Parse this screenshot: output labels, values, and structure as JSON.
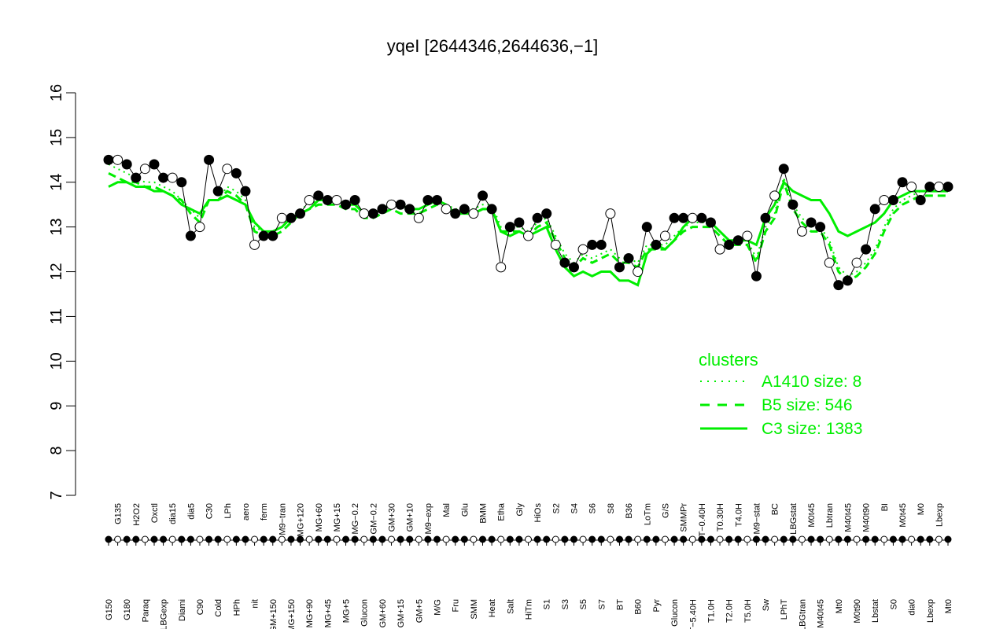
{
  "chart_data": {
    "type": "line",
    "title": "yqeI [2644346,2644636,−1]",
    "xlabel": "",
    "ylabel": "",
    "ylim": [
      7,
      16
    ],
    "yticks": [
      "7",
      "8",
      "9",
      "10",
      "11",
      "12",
      "13",
      "14",
      "15",
      "16"
    ],
    "xlim": [
      0,
      67
    ],
    "categories": [
      {
        "x": 1,
        "label": "G150"
      },
      {
        "x": 2,
        "label": "G135"
      },
      {
        "x": 3,
        "label": "G180"
      },
      {
        "x": 4,
        "label": "H2O2"
      },
      {
        "x": 5,
        "label": "Paraq"
      },
      {
        "x": 6,
        "label": "Oxctl"
      },
      {
        "x": 7,
        "label": "LBGexp"
      },
      {
        "x": 8,
        "label": "dia15"
      },
      {
        "x": 9,
        "label": "Diami"
      },
      {
        "x": 10,
        "label": "dia5"
      },
      {
        "x": 11,
        "label": "C90"
      },
      {
        "x": 12,
        "label": "C30"
      },
      {
        "x": 13,
        "label": "Cold"
      },
      {
        "x": 14,
        "label": "LPh"
      },
      {
        "x": 15,
        "label": "HPh"
      },
      {
        "x": 16,
        "label": "aero"
      },
      {
        "x": 17,
        "label": "nit"
      },
      {
        "x": 18,
        "label": "ferm"
      },
      {
        "x": 19,
        "label": "GM+150"
      },
      {
        "x": 20,
        "label": "M9−tran"
      },
      {
        "x": 21,
        "label": "MG+150"
      },
      {
        "x": 22,
        "label": "MG+120"
      },
      {
        "x": 23,
        "label": "MG+90"
      },
      {
        "x": 24,
        "label": "MG+60"
      },
      {
        "x": 25,
        "label": "MG+45"
      },
      {
        "x": 26,
        "label": "MG+15"
      },
      {
        "x": 27,
        "label": "MG+5"
      },
      {
        "x": 28,
        "label": "MG−0.2"
      },
      {
        "x": 29,
        "label": "Glucon"
      },
      {
        "x": 30,
        "label": "GM−0.2"
      },
      {
        "x": 31,
        "label": "GM+60"
      },
      {
        "x": 32,
        "label": "GM+30"
      },
      {
        "x": 33,
        "label": "GM+15"
      },
      {
        "x": 34,
        "label": "GM+10"
      },
      {
        "x": 35,
        "label": "GM+5"
      },
      {
        "x": 36,
        "label": "M9−exp"
      },
      {
        "x": 37,
        "label": "M/G"
      },
      {
        "x": 38,
        "label": "Mal"
      },
      {
        "x": 39,
        "label": "Fru"
      },
      {
        "x": 40,
        "label": "Glu"
      },
      {
        "x": 41,
        "label": "SMM"
      },
      {
        "x": 42,
        "label": "BMM"
      },
      {
        "x": 43,
        "label": "Heat"
      },
      {
        "x": 44,
        "label": "Etha"
      },
      {
        "x": 45,
        "label": "Salt"
      },
      {
        "x": 46,
        "label": "Gly"
      },
      {
        "x": 47,
        "label": "HiTm"
      },
      {
        "x": 48,
        "label": "HiOs"
      },
      {
        "x": 49,
        "label": "S1"
      },
      {
        "x": 50,
        "label": "S2"
      },
      {
        "x": 51,
        "label": "S3"
      },
      {
        "x": 52,
        "label": "S4"
      },
      {
        "x": 53,
        "label": "S5"
      },
      {
        "x": 54,
        "label": "S6"
      },
      {
        "x": 55,
        "label": "S7"
      },
      {
        "x": 56,
        "label": "S8"
      },
      {
        "x": 57,
        "label": "BT"
      },
      {
        "x": 58,
        "label": "B36"
      },
      {
        "x": 59,
        "label": "B60"
      },
      {
        "x": 60,
        "label": "LoTm"
      },
      {
        "x": 61,
        "label": "Pyr"
      },
      {
        "x": 62,
        "label": "G/S"
      },
      {
        "x": 63,
        "label": "Glucon"
      },
      {
        "x": 64,
        "label": "SMMPr"
      },
      {
        "x": 65,
        "label": "T−5.40H"
      },
      {
        "x": 66,
        "label": "T−0.40H"
      },
      {
        "x": 67,
        "label": "T1.0H"
      },
      {
        "x": 68,
        "label": "T0.30H"
      },
      {
        "x": 69,
        "label": "T2.0H"
      },
      {
        "x": 70,
        "label": "T4.0H"
      },
      {
        "x": 71,
        "label": "T5.0H"
      },
      {
        "x": 72,
        "label": "M9−stat"
      },
      {
        "x": 73,
        "label": "Sw"
      },
      {
        "x": 74,
        "label": "BC"
      },
      {
        "x": 75,
        "label": "LPhT"
      },
      {
        "x": 76,
        "label": "LBGstat"
      },
      {
        "x": 77,
        "label": "LBGtran"
      },
      {
        "x": 78,
        "label": "M0t45"
      },
      {
        "x": 79,
        "label": "M40t45"
      },
      {
        "x": 80,
        "label": "Lbtran"
      },
      {
        "x": 81,
        "label": "Mt0"
      },
      {
        "x": 82,
        "label": "M40t45"
      },
      {
        "x": 83,
        "label": "M0t90"
      },
      {
        "x": 84,
        "label": "M40t90"
      },
      {
        "x": 85,
        "label": "Lbstat"
      },
      {
        "x": 86,
        "label": "BI"
      },
      {
        "x": 87,
        "label": "S0"
      },
      {
        "x": 88,
        "label": "M0t45"
      },
      {
        "x": 89,
        "label": "dia0"
      },
      {
        "x": 90,
        "label": "M0"
      },
      {
        "x": 91,
        "label": "Lbexp"
      },
      {
        "x": 92,
        "label": "Lbexp"
      },
      {
        "x": 93,
        "label": "Mt0"
      }
    ],
    "series": [
      {
        "name": "A1410 size: 8",
        "style": "dotted",
        "values": [
          14.4,
          14.3,
          14.2,
          14.1,
          14.0,
          14.0,
          13.9,
          13.8,
          13.6,
          13.4,
          13.2,
          13.6,
          13.6,
          13.9,
          13.8,
          13.6,
          13.0,
          12.9,
          12.9,
          13.0,
          13.2,
          13.4,
          13.5,
          13.6,
          13.6,
          13.6,
          13.5,
          13.5,
          13.3,
          13.3,
          13.4,
          13.5,
          13.4,
          13.4,
          13.4,
          13.5,
          13.6,
          13.5,
          13.4,
          13.4,
          13.4,
          13.5,
          13.5,
          13.0,
          13.0,
          13.0,
          12.9,
          13.1,
          13.2,
          12.8,
          12.4,
          12.2,
          12.4,
          12.3,
          12.4,
          12.5,
          12.3,
          12.3,
          12.2,
          12.6,
          12.6,
          12.6,
          12.8,
          13.0,
          13.1,
          13.1,
          13.1,
          12.9,
          12.7,
          12.7,
          12.7,
          12.3,
          13.0,
          13.3,
          14.1,
          13.5,
          13.2,
          13.0,
          13.0,
          12.7,
          12.1,
          11.9,
          12.0,
          12.2,
          12.5,
          13.0,
          13.4,
          13.6,
          13.7,
          13.8,
          13.8,
          13.8,
          13.8
        ]
      },
      {
        "name": "B5 size: 546",
        "style": "dashed",
        "values": [
          14.2,
          14.1,
          14.0,
          14.0,
          13.9,
          13.9,
          13.8,
          13.7,
          13.6,
          13.3,
          13.1,
          13.6,
          13.6,
          13.8,
          13.7,
          13.5,
          12.9,
          12.8,
          12.8,
          12.9,
          13.1,
          13.3,
          13.4,
          13.5,
          13.5,
          13.5,
          13.4,
          13.4,
          13.2,
          13.2,
          13.3,
          13.4,
          13.3,
          13.3,
          13.3,
          13.4,
          13.5,
          13.4,
          13.3,
          13.3,
          13.3,
          13.4,
          13.4,
          12.9,
          12.9,
          12.9,
          12.8,
          13.0,
          13.1,
          12.7,
          12.3,
          12.1,
          12.3,
          12.2,
          12.3,
          12.4,
          12.2,
          12.2,
          12.1,
          12.5,
          12.5,
          12.5,
          12.7,
          12.9,
          13.0,
          13.0,
          13.0,
          12.8,
          12.6,
          12.6,
          12.6,
          12.2,
          12.9,
          13.2,
          14.0,
          13.4,
          13.1,
          12.9,
          12.9,
          12.6,
          12.0,
          11.8,
          11.9,
          12.1,
          12.4,
          12.9,
          13.3,
          13.5,
          13.6,
          13.7,
          13.7,
          13.7,
          13.7
        ]
      },
      {
        "name": "C3 size: 1383",
        "style": "solid",
        "values": [
          13.9,
          14.0,
          14.0,
          13.9,
          13.9,
          13.8,
          13.8,
          13.7,
          13.5,
          13.4,
          13.3,
          13.6,
          13.6,
          13.7,
          13.6,
          13.5,
          13.1,
          12.9,
          12.9,
          13.0,
          13.2,
          13.3,
          13.4,
          13.6,
          13.6,
          13.6,
          13.5,
          13.5,
          13.3,
          13.3,
          13.4,
          13.5,
          13.5,
          13.4,
          13.4,
          13.5,
          13.6,
          13.5,
          13.3,
          13.3,
          13.3,
          13.4,
          13.4,
          12.9,
          12.8,
          12.9,
          12.8,
          12.9,
          13.0,
          12.5,
          12.1,
          11.9,
          12.0,
          11.9,
          12.0,
          12.0,
          11.8,
          11.8,
          11.7,
          12.4,
          12.6,
          12.5,
          12.7,
          13.0,
          13.2,
          13.2,
          13.1,
          12.9,
          12.7,
          12.7,
          12.7,
          12.6,
          13.2,
          13.5,
          14.0,
          13.8,
          13.7,
          13.6,
          13.6,
          13.3,
          12.9,
          12.8,
          12.9,
          13.0,
          13.1,
          13.3,
          13.6,
          13.7,
          13.8,
          13.8,
          13.8,
          13.8,
          13.8
        ]
      },
      {
        "name": "yqeI",
        "style": "points",
        "values": [
          14.5,
          14.5,
          14.4,
          14.1,
          14.3,
          14.4,
          14.1,
          14.1,
          14.0,
          12.8,
          13.0,
          14.5,
          13.8,
          14.3,
          14.2,
          13.8,
          12.6,
          12.8,
          12.8,
          13.2,
          13.2,
          13.3,
          13.6,
          13.7,
          13.6,
          13.6,
          13.5,
          13.6,
          13.3,
          13.3,
          13.4,
          13.5,
          13.5,
          13.4,
          13.2,
          13.6,
          13.6,
          13.4,
          13.3,
          13.4,
          13.3,
          13.7,
          13.4,
          12.1,
          13.0,
          13.1,
          12.8,
          13.2,
          13.3,
          12.6,
          12.2,
          12.1,
          12.5,
          12.6,
          12.6,
          13.3,
          12.1,
          12.3,
          12.0,
          13.0,
          12.6,
          12.8,
          13.2,
          13.2,
          13.2,
          13.2,
          13.1,
          12.5,
          12.6,
          12.7,
          12.8,
          11.9,
          13.2,
          13.7,
          14.3,
          13.5,
          12.9,
          13.1,
          13.0,
          12.2,
          11.7,
          11.8,
          12.2,
          12.5,
          13.4,
          13.6,
          13.6,
          14.0,
          13.9,
          13.6,
          13.9,
          13.9,
          13.9
        ]
      }
    ],
    "legend": {
      "title": "clusters",
      "placement": "bottom-right",
      "entries": [
        {
          "label": "A1410 size: 8",
          "style": "dotted"
        },
        {
          "label": "B5 size: 546",
          "style": "dashed"
        },
        {
          "label": "C3 size: 1383",
          "style": "solid"
        }
      ]
    },
    "colors": {
      "cluster": "#00ee00",
      "points_fill": "#000000",
      "points_open": "#ffffff",
      "axis": "#000000"
    }
  }
}
